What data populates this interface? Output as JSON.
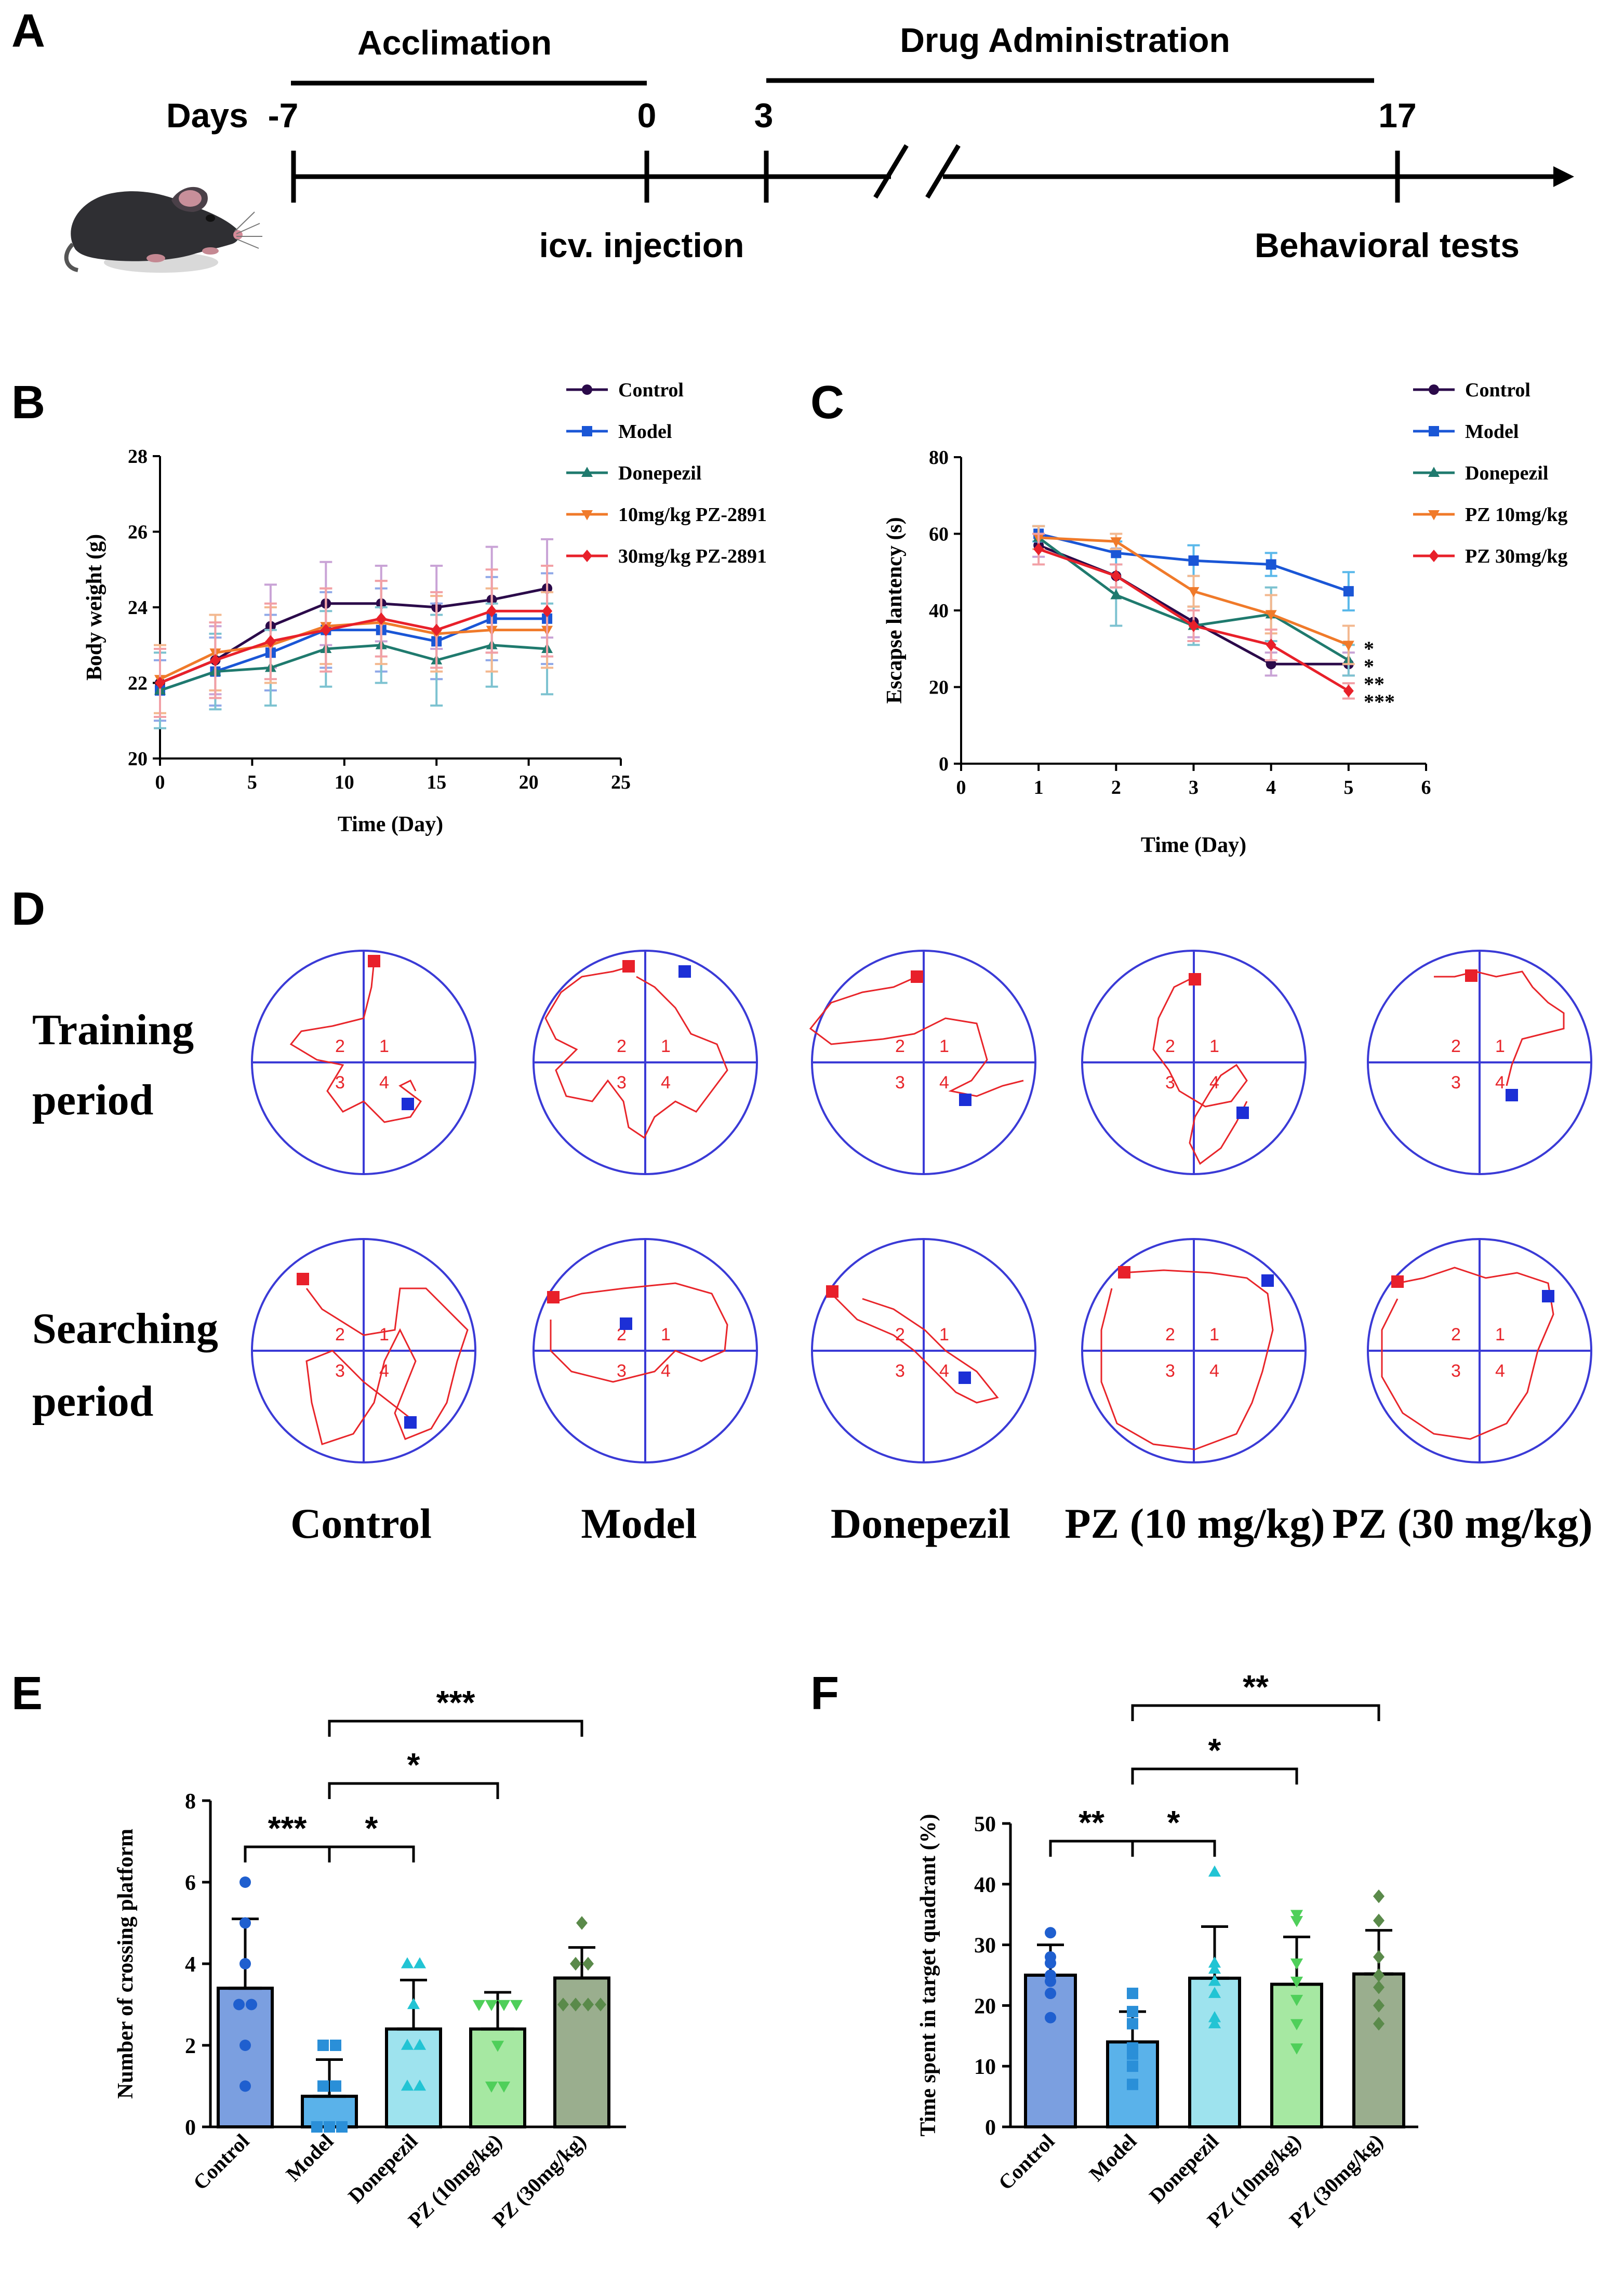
{
  "panels": {
    "a": {
      "letter": "A",
      "phase1": "Acclimation",
      "phase2": "Drug Administration",
      "days_label": "Days",
      "ticks": [
        "-7",
        "0",
        "3",
        "17"
      ],
      "event1": "icv. injection",
      "event2": "Behavioral tests"
    },
    "b": {
      "letter": "B"
    },
    "c": {
      "letter": "C"
    },
    "d": {
      "letter": "D",
      "row1_line1": "Training",
      "row1_line2": "period",
      "row2_line1": "Searching",
      "row2_line2": "period",
      "groups": [
        "Control",
        "Model",
        "Donepezil",
        "PZ (10 mg/kg)",
        "PZ (30 mg/kg)"
      ],
      "quadrants": [
        "1",
        "2",
        "3",
        "4"
      ]
    },
    "e": {
      "letter": "E"
    },
    "f": {
      "letter": "F"
    }
  },
  "chart_data": [
    {
      "id": "B",
      "type": "line",
      "xlabel": "Time (Day)",
      "ylabel": "Body weight (g)",
      "xlim": [
        0,
        25
      ],
      "ylim": [
        20,
        28
      ],
      "xticks": [
        0,
        5,
        10,
        15,
        20,
        25
      ],
      "yticks": [
        20,
        22,
        24,
        26,
        28
      ],
      "x": [
        0,
        3,
        6,
        9,
        12,
        15,
        18,
        21
      ],
      "series": [
        {
          "name": "Control",
          "color": "#2b0a4a",
          "marker": "circle",
          "values": [
            22.0,
            22.6,
            23.5,
            24.1,
            24.1,
            24.0,
            24.2,
            24.5
          ],
          "err": [
            0.9,
            0.9,
            1.1,
            1.1,
            1.0,
            1.1,
            1.4,
            1.3
          ],
          "errColor": "#c9a3d6"
        },
        {
          "name": "Model",
          "color": "#1a56d6",
          "marker": "square",
          "values": [
            21.8,
            22.3,
            22.8,
            23.4,
            23.4,
            23.1,
            23.7,
            23.7
          ],
          "err": [
            0.8,
            0.9,
            1.0,
            1.0,
            1.1,
            1.0,
            1.1,
            1.2
          ],
          "errColor": "#8fa8e8"
        },
        {
          "name": "Donepezil",
          "color": "#1f7a6e",
          "marker": "triangle",
          "values": [
            21.8,
            22.3,
            22.4,
            22.9,
            23.0,
            22.6,
            23.0,
            22.9
          ],
          "err": [
            1.0,
            1.0,
            1.0,
            1.0,
            1.0,
            1.2,
            1.1,
            1.2
          ],
          "errColor": "#7cc2d0"
        },
        {
          "name": "10mg/kg PZ-2891",
          "color": "#f07a2a",
          "marker": "triangle-down",
          "values": [
            22.1,
            22.8,
            23.0,
            23.5,
            23.6,
            23.3,
            23.4,
            23.4
          ],
          "err": [
            0.9,
            1.0,
            1.0,
            1.0,
            1.1,
            1.0,
            1.1,
            1.0
          ],
          "errColor": "#f3b88f"
        },
        {
          "name": "30mg/kg PZ-2891",
          "color": "#e8202a",
          "marker": "diamond",
          "values": [
            22.0,
            22.6,
            23.1,
            23.4,
            23.7,
            23.4,
            23.9,
            23.9
          ],
          "err": [
            0.9,
            1.0,
            1.0,
            1.1,
            1.0,
            1.0,
            1.1,
            1.2
          ],
          "errColor": "#f2a0a6"
        }
      ]
    },
    {
      "id": "C",
      "type": "line",
      "xlabel": "Time (Day)",
      "ylabel": "Escapse lantency (s)",
      "xlim": [
        0,
        6
      ],
      "ylim": [
        0,
        80
      ],
      "xticks": [
        0,
        1,
        2,
        3,
        4,
        5,
        6
      ],
      "yticks": [
        0,
        20,
        40,
        60,
        80
      ],
      "x": [
        1,
        2,
        3,
        4,
        5
      ],
      "series": [
        {
          "name": "Control",
          "color": "#2b0a4a",
          "marker": "circle",
          "values": [
            57,
            49,
            37,
            26,
            26
          ],
          "err": [
            3,
            3,
            4,
            3,
            3
          ],
          "errColor": "#c9a3d6"
        },
        {
          "name": "Model",
          "color": "#1a56d6",
          "marker": "square",
          "values": [
            60,
            55,
            53,
            52,
            45
          ],
          "err": [
            2,
            3,
            4,
            3,
            5
          ],
          "errColor": "#59b8ea"
        },
        {
          "name": "Donepezil",
          "color": "#1f7a6e",
          "marker": "triangle",
          "values": [
            59,
            44,
            36,
            39,
            27
          ],
          "err": [
            3,
            8,
            5,
            7,
            4
          ],
          "errColor": "#7cc2d0"
        },
        {
          "name": "PZ 10mg/kg",
          "color": "#f07a2a",
          "marker": "triangle-down",
          "values": [
            59,
            58,
            45,
            39,
            31
          ],
          "err": [
            3,
            2,
            4,
            5,
            5
          ],
          "errColor": "#f3b88f"
        },
        {
          "name": "PZ 30mg/kg",
          "color": "#e8202a",
          "marker": "diamond",
          "values": [
            56,
            49,
            36,
            31,
            19
          ],
          "err": [
            4,
            3,
            4,
            4,
            2
          ],
          "errColor": "#f2a0a6"
        }
      ],
      "significance": [
        "*",
        "*",
        "**",
        "***"
      ]
    },
    {
      "id": "E",
      "type": "bar",
      "ylabel": "Number of crossing platform",
      "ylim": [
        0,
        8
      ],
      "yticks": [
        0,
        2,
        4,
        6,
        8
      ],
      "categories": [
        "Control",
        "Model",
        "Donepezil",
        "PZ (10mg/kg)",
        "PZ (30mg/kg)"
      ],
      "values": [
        3.4,
        0.75,
        2.4,
        2.4,
        3.65
      ],
      "sd": [
        1.7,
        0.9,
        1.2,
        0.9,
        0.75
      ],
      "colors": [
        "#7b9fe0",
        "#5ab2ea",
        "#9ee3ee",
        "#a6e8a2",
        "#9aae8e"
      ],
      "pointColors": [
        "#1f5fcf",
        "#2a8fd8",
        "#22c4d4",
        "#4fcf5a",
        "#5a8a4a"
      ],
      "markers": [
        "circle",
        "square",
        "triangle",
        "triangle-down",
        "diamond"
      ],
      "points": [
        [
          6,
          5,
          4,
          3,
          3,
          2,
          1
        ],
        [
          2,
          2,
          1,
          1,
          0,
          0,
          0
        ],
        [
          4,
          4,
          3,
          2,
          2,
          1,
          1
        ],
        [
          3,
          3,
          3,
          3,
          2,
          1,
          1
        ],
        [
          5,
          4,
          3,
          3,
          3,
          3,
          4
        ]
      ],
      "comparisons": [
        {
          "from": 0,
          "to": 1,
          "label": "***",
          "level": 0
        },
        {
          "from": 1,
          "to": 2,
          "label": "*",
          "level": 0
        },
        {
          "from": 1,
          "to": 3,
          "label": "*",
          "level": 1
        },
        {
          "from": 1,
          "to": 4,
          "label": "***",
          "level": 2
        }
      ]
    },
    {
      "id": "F",
      "type": "bar",
      "ylabel": "Time spent in target quadrant (%)",
      "ylim": [
        0,
        50
      ],
      "yticks": [
        0,
        10,
        20,
        30,
        40,
        50
      ],
      "categories": [
        "Control",
        "Model",
        "Donepezil",
        "PZ (10mg/kg)",
        "PZ (30mg/kg)"
      ],
      "values": [
        25,
        14,
        24.5,
        23.5,
        25.2
      ],
      "sd": [
        5,
        5,
        8.5,
        7.8,
        7.2
      ],
      "colors": [
        "#7b9fe0",
        "#5ab2ea",
        "#9ee3ee",
        "#a6e8a2",
        "#9aae8e"
      ],
      "pointColors": [
        "#1f5fcf",
        "#2a8fd8",
        "#22c4d4",
        "#4fcf5a",
        "#5a8a4a"
      ],
      "markers": [
        "circle",
        "square",
        "triangle",
        "triangle-down",
        "diamond"
      ],
      "points": [
        [
          32,
          28,
          27,
          25,
          24,
          22,
          18
        ],
        [
          22,
          19,
          17,
          13,
          12,
          10,
          7
        ],
        [
          42,
          27,
          26,
          24,
          22,
          18,
          17
        ],
        [
          35,
          34,
          27,
          24,
          21,
          17,
          13
        ],
        [
          38,
          34,
          28,
          25,
          23,
          20,
          17
        ]
      ],
      "comparisons": [
        {
          "from": 0,
          "to": 1,
          "label": "**",
          "level": 0
        },
        {
          "from": 1,
          "to": 2,
          "label": "*",
          "level": 0
        },
        {
          "from": 1,
          "to": 3,
          "label": "*",
          "level": 1
        },
        {
          "from": 1,
          "to": 4,
          "label": "**",
          "level": 2
        }
      ]
    }
  ]
}
